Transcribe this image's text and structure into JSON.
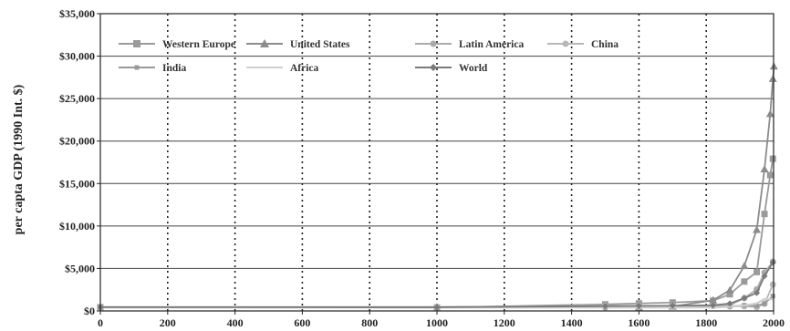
{
  "chart_data": {
    "type": "line",
    "title": "",
    "xlabel": "",
    "ylabel": "per capta GDP (1990 Int. $)",
    "xlim": [
      0,
      2000
    ],
    "ylim": [
      0,
      35000
    ],
    "x_ticks": [
      "0",
      "200",
      "400",
      "600",
      "800",
      "1000",
      "1200",
      "1400",
      "1600",
      "1800",
      "2000"
    ],
    "y_ticks": [
      "$0",
      "$5,000",
      "$10,000",
      "$15,000",
      "$20,000",
      "$25,000",
      "$30,000",
      "$35,000"
    ],
    "grid": "horizontal solid, vertical dotted",
    "legend_position": "top-left, inside",
    "series": [
      {
        "name": "Western Europe",
        "marker": "square",
        "color": "#9a9a9a",
        "x": [
          0,
          1000,
          1500,
          1600,
          1700,
          1820,
          1870,
          1913,
          1950,
          1973,
          1990,
          1998
        ],
        "y": [
          450,
          400,
          771,
          889,
          997,
          1204,
          1960,
          3458,
          4579,
          11416,
          16000,
          17921
        ]
      },
      {
        "name": "United States",
        "marker": "triangle",
        "color": "#8c8c8c",
        "x": [
          1600,
          1700,
          1820,
          1870,
          1913,
          1950,
          1973,
          1990,
          1998,
          2001
        ],
        "y": [
          400,
          527,
          1257,
          2445,
          5301,
          9561,
          16689,
          23201,
          27331,
          28800
        ]
      },
      {
        "name": "Latin America",
        "marker": "circle",
        "color": "#aaaaaa",
        "x": [
          0,
          1000,
          1500,
          1600,
          1700,
          1820,
          1870,
          1913,
          1950,
          1973,
          1998
        ],
        "y": [
          400,
          400,
          416,
          437,
          529,
          665,
          698,
          1511,
          2554,
          4531,
          5795
        ]
      },
      {
        "name": "China",
        "marker": "circle",
        "color": "#b8b8b8",
        "x": [
          0,
          1000,
          1500,
          1600,
          1700,
          1820,
          1870,
          1913,
          1950,
          1973,
          1998
        ],
        "y": [
          450,
          450,
          600,
          600,
          600,
          600,
          530,
          552,
          439,
          839,
          3117
        ]
      },
      {
        "name": "India",
        "marker": "small-square",
        "color": "#999999",
        "x": [
          0,
          1000,
          1500,
          1600,
          1700,
          1820,
          1870,
          1913,
          1950,
          1973,
          1998
        ],
        "y": [
          450,
          450,
          550,
          550,
          550,
          533,
          533,
          673,
          619,
          853,
          1746
        ]
      },
      {
        "name": "Africa",
        "marker": "none",
        "color": "#cfcfcf",
        "x": [
          0,
          1000,
          1500,
          1600,
          1700,
          1820,
          1870,
          1913,
          1950,
          1973,
          1998
        ],
        "y": [
          430,
          430,
          400,
          400,
          400,
          420,
          500,
          637,
          894,
          1410,
          1368
        ]
      },
      {
        "name": "World",
        "marker": "diamond",
        "color": "#7a7a7a",
        "x": [
          0,
          1000,
          1500,
          1600,
          1700,
          1820,
          1870,
          1913,
          1950,
          1973,
          1998
        ],
        "y": [
          444,
          435,
          565,
          593,
          615,
          667,
          867,
          1510,
          2114,
          4104,
          5709
        ]
      }
    ]
  }
}
